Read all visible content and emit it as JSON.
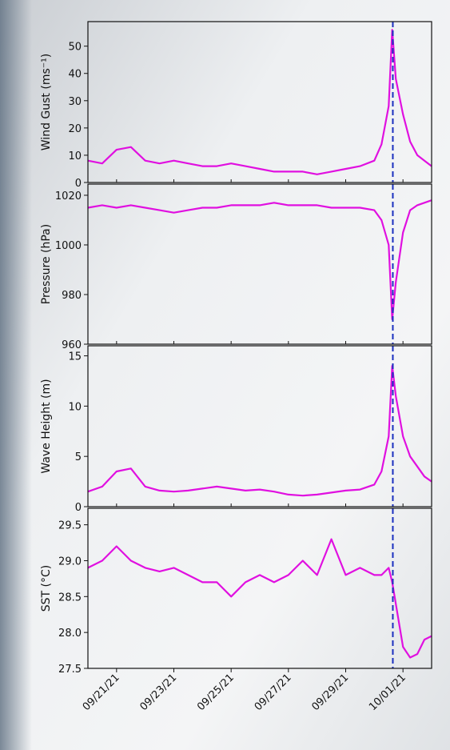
{
  "chart_data": [
    {
      "type": "line",
      "ylabel": "Wind Gust (ms⁻¹)",
      "color": "#e010e0",
      "x": [
        "2021-09-20T00:00",
        "2021-09-20T12:00",
        "2021-09-21T00:00",
        "2021-09-21T12:00",
        "2021-09-22T00:00",
        "2021-09-22T12:00",
        "2021-09-23T00:00",
        "2021-09-23T12:00",
        "2021-09-24T00:00",
        "2021-09-24T12:00",
        "2021-09-25T00:00",
        "2021-09-25T12:00",
        "2021-09-26T00:00",
        "2021-09-26T12:00",
        "2021-09-27T00:00",
        "2021-09-27T12:00",
        "2021-09-28T00:00",
        "2021-09-28T12:00",
        "2021-09-29T00:00",
        "2021-09-29T12:00",
        "2021-09-30T00:00",
        "2021-09-30T06:00",
        "2021-09-30T12:00",
        "2021-09-30T15:00",
        "2021-09-30T18:00",
        "2021-10-01T00:00",
        "2021-10-01T06:00",
        "2021-10-01T12:00",
        "2021-10-01T18:00",
        "2021-10-02T00:00"
      ],
      "values": [
        8,
        7,
        12,
        13,
        8,
        7,
        8,
        7,
        6,
        6,
        7,
        6,
        5,
        4,
        4,
        4,
        3,
        4,
        5,
        6,
        8,
        14,
        28,
        56,
        38,
        25,
        15,
        10,
        8,
        6
      ],
      "xlim": [
        "2021-09-20T00:00",
        "2021-10-02T00:00"
      ],
      "ylim": [
        0,
        59
      ],
      "yticks": [
        0,
        10,
        20,
        30,
        40,
        50
      ],
      "vline": {
        "x": "2021-09-30T15:30",
        "color": "#1a2fbf"
      }
    },
    {
      "type": "line",
      "ylabel": "Pressure (hPa)",
      "color": "#e010e0",
      "x": [
        "2021-09-20T00:00",
        "2021-09-20T12:00",
        "2021-09-21T00:00",
        "2021-09-21T12:00",
        "2021-09-22T00:00",
        "2021-09-22T12:00",
        "2021-09-23T00:00",
        "2021-09-23T12:00",
        "2021-09-24T00:00",
        "2021-09-24T12:00",
        "2021-09-25T00:00",
        "2021-09-25T12:00",
        "2021-09-26T00:00",
        "2021-09-26T12:00",
        "2021-09-27T00:00",
        "2021-09-27T12:00",
        "2021-09-28T00:00",
        "2021-09-28T12:00",
        "2021-09-29T00:00",
        "2021-09-29T12:00",
        "2021-09-30T00:00",
        "2021-09-30T06:00",
        "2021-09-30T12:00",
        "2021-09-30T15:00",
        "2021-09-30T18:00",
        "2021-10-01T00:00",
        "2021-10-01T06:00",
        "2021-10-01T12:00",
        "2021-10-01T18:00",
        "2021-10-02T00:00"
      ],
      "values": [
        1015,
        1016,
        1015,
        1016,
        1015,
        1014,
        1013,
        1014,
        1015,
        1015,
        1016,
        1016,
        1016,
        1017,
        1016,
        1016,
        1016,
        1015,
        1015,
        1015,
        1014,
        1010,
        1000,
        970,
        985,
        1005,
        1014,
        1016,
        1017,
        1018
      ],
      "xlim": [
        "2021-09-20T00:00",
        "2021-10-02T00:00"
      ],
      "ylim": [
        960,
        1024.5
      ],
      "yticks": [
        960,
        980,
        1000,
        1020
      ],
      "vline": {
        "x": "2021-09-30T15:30",
        "color": "#1a2fbf"
      }
    },
    {
      "type": "line",
      "ylabel": "Wave Height (m)",
      "color": "#e010e0",
      "x": [
        "2021-09-20T00:00",
        "2021-09-20T12:00",
        "2021-09-21T00:00",
        "2021-09-21T12:00",
        "2021-09-22T00:00",
        "2021-09-22T12:00",
        "2021-09-23T00:00",
        "2021-09-23T12:00",
        "2021-09-24T00:00",
        "2021-09-24T12:00",
        "2021-09-25T00:00",
        "2021-09-25T12:00",
        "2021-09-26T00:00",
        "2021-09-26T12:00",
        "2021-09-27T00:00",
        "2021-09-27T12:00",
        "2021-09-28T00:00",
        "2021-09-28T12:00",
        "2021-09-29T00:00",
        "2021-09-29T12:00",
        "2021-09-30T00:00",
        "2021-09-30T06:00",
        "2021-09-30T12:00",
        "2021-09-30T15:00",
        "2021-09-30T18:00",
        "2021-10-01T00:00",
        "2021-10-01T06:00",
        "2021-10-01T12:00",
        "2021-10-01T18:00",
        "2021-10-02T00:00"
      ],
      "values": [
        1.5,
        2,
        3.5,
        3.8,
        2,
        1.6,
        1.5,
        1.6,
        1.8,
        2,
        1.8,
        1.6,
        1.7,
        1.5,
        1.2,
        1.1,
        1.2,
        1.4,
        1.6,
        1.7,
        2.2,
        3.5,
        7,
        14,
        11,
        7,
        5,
        4,
        3,
        2.5
      ],
      "xlim": [
        "2021-09-20T00:00",
        "2021-10-02T00:00"
      ],
      "ylim": [
        0,
        16
      ],
      "yticks": [
        0,
        5,
        10,
        15
      ],
      "vline": {
        "x": "2021-09-30T15:30",
        "color": "#1a2fbf"
      }
    },
    {
      "type": "line",
      "ylabel": "SST (°C)",
      "color": "#e010e0",
      "x": [
        "2021-09-20T00:00",
        "2021-09-20T12:00",
        "2021-09-21T00:00",
        "2021-09-21T12:00",
        "2021-09-22T00:00",
        "2021-09-22T12:00",
        "2021-09-23T00:00",
        "2021-09-23T12:00",
        "2021-09-24T00:00",
        "2021-09-24T12:00",
        "2021-09-25T00:00",
        "2021-09-25T12:00",
        "2021-09-26T00:00",
        "2021-09-26T12:00",
        "2021-09-27T00:00",
        "2021-09-27T12:00",
        "2021-09-28T00:00",
        "2021-09-28T12:00",
        "2021-09-29T00:00",
        "2021-09-29T12:00",
        "2021-09-30T00:00",
        "2021-09-30T06:00",
        "2021-09-30T12:00",
        "2021-09-30T15:00",
        "2021-09-30T18:00",
        "2021-10-01T00:00",
        "2021-10-01T06:00",
        "2021-10-01T12:00",
        "2021-10-01T18:00",
        "2021-10-02T00:00"
      ],
      "values": [
        28.9,
        29.0,
        29.2,
        29.0,
        28.9,
        28.85,
        28.9,
        28.8,
        28.7,
        28.7,
        28.5,
        28.7,
        28.8,
        28.7,
        28.8,
        29.0,
        28.8,
        29.3,
        28.8,
        28.9,
        28.8,
        28.8,
        28.9,
        28.7,
        28.4,
        27.8,
        27.65,
        27.7,
        27.9,
        27.95
      ],
      "xlim": [
        "2021-09-20T00:00",
        "2021-10-02T00:00"
      ],
      "ylim": [
        27.5,
        29.73
      ],
      "yticks": [
        27.5,
        {
          "value": 28,
          "label": "28.0"
        },
        28.5,
        {
          "value": 29,
          "label": "29.0"
        },
        29.5
      ],
      "xticks": [
        {
          "value": "2021-09-21T00:00",
          "label": "09/21/21"
        },
        {
          "value": "2021-09-23T00:00",
          "label": "09/23/21"
        },
        {
          "value": "2021-09-25T00:00",
          "label": "09/25/21"
        },
        {
          "value": "2021-09-27T00:00",
          "label": "09/27/21"
        },
        {
          "value": "2021-09-29T00:00",
          "label": "09/29/21"
        },
        {
          "value": "2021-10-01T00:00",
          "label": "10/01/21"
        }
      ],
      "vline": {
        "x": "2021-09-30T15:30",
        "color": "#1a2fbf"
      }
    }
  ]
}
